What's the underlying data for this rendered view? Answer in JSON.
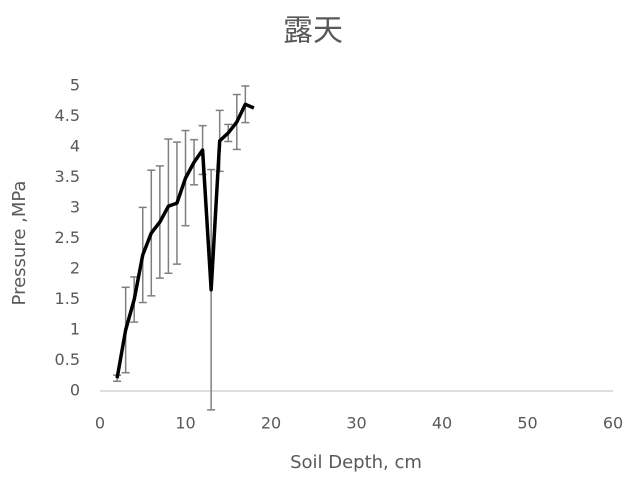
{
  "chart_data": {
    "type": "line",
    "title": "露天",
    "x_label": "Soil Depth, cm",
    "y_label": "Pressure ,MPa",
    "x": [
      2,
      3,
      4,
      5,
      6,
      7,
      8,
      9,
      10,
      11,
      12,
      13,
      14,
      15,
      16,
      17,
      18
    ],
    "series": [
      {
        "name": "Pressure",
        "color": "#000000",
        "values": [
          0.21,
          1.0,
          1.5,
          2.23,
          2.59,
          2.77,
          3.03,
          3.08,
          3.49,
          3.75,
          3.95,
          1.66,
          4.1,
          4.23,
          4.41,
          4.7,
          4.64
        ],
        "errors": [
          0.05,
          0.7,
          0.37,
          0.78,
          1.03,
          0.92,
          1.1,
          1.0,
          0.78,
          0.37,
          0.4,
          1.97,
          0.5,
          0.14,
          0.45,
          0.3,
          null
        ]
      }
    ],
    "error_color": "#7f7f7f",
    "xlim": [
      0,
      60
    ],
    "xticks": [
      0,
      10,
      20,
      30,
      40,
      50,
      60
    ],
    "ylim": [
      0,
      5
    ],
    "yticks": [
      0,
      0.5,
      1,
      1.5,
      2,
      2.5,
      3,
      3.5,
      4,
      4.5,
      5
    ],
    "grid": false
  }
}
